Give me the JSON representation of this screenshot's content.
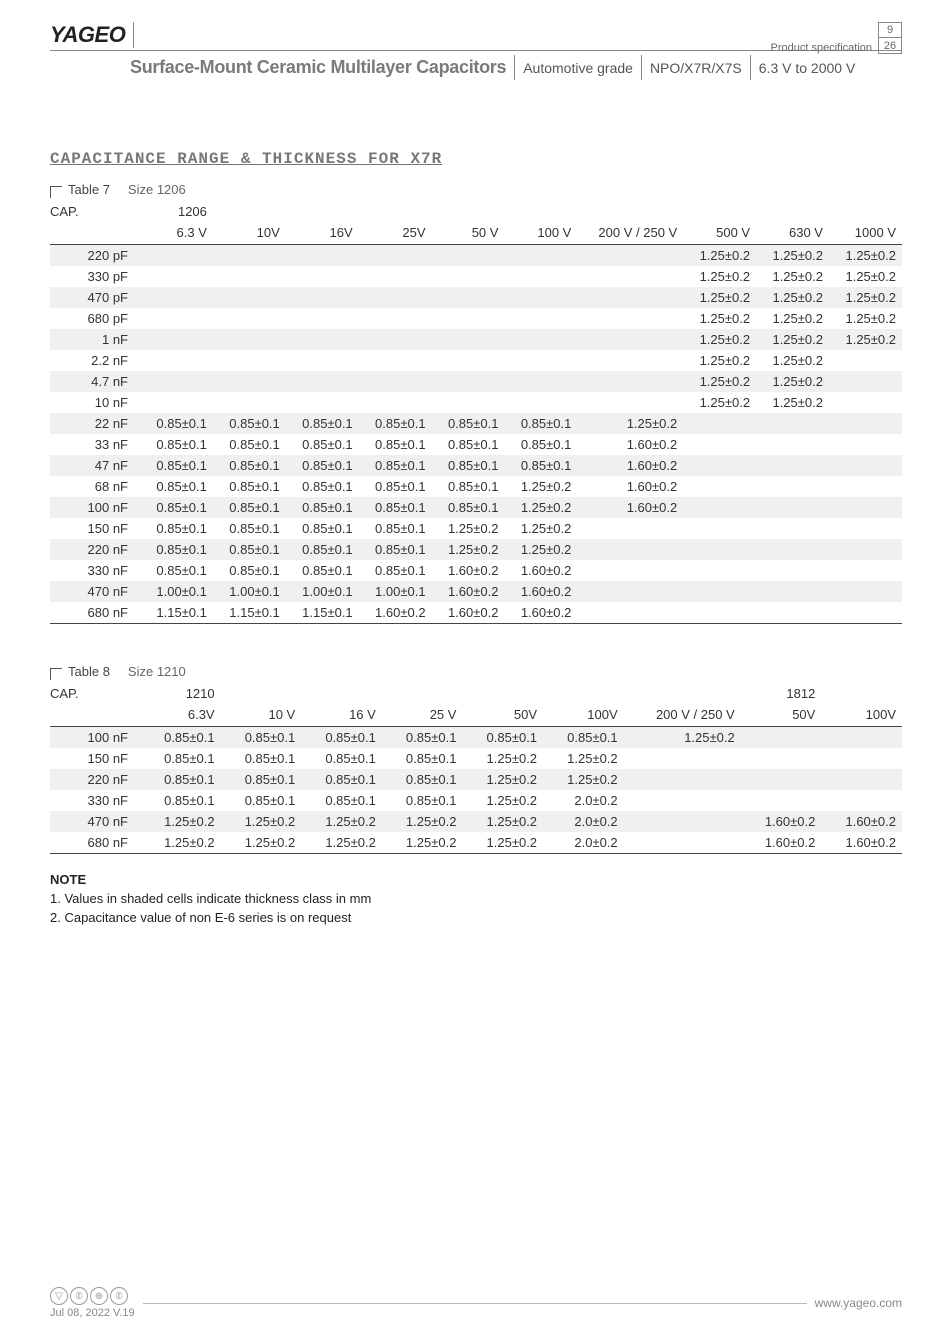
{
  "header": {
    "brand": "YAGEO",
    "product_spec_label": "Product specification",
    "page_current": "9",
    "page_total": "26",
    "title_main": "Surface-Mount Ceramic Multilayer Capacitors",
    "grade": "Automotive grade",
    "dielectric": "NPO/X7R/X7S",
    "voltage_range": "6.3 V to 2000 V"
  },
  "section_title": "CAPACITANCE RANGE & THICKNESS FOR X7R",
  "table7": {
    "caption": "Table 7",
    "size_label": "Size 1206",
    "cap_label": "CAP.",
    "size_header": "1206",
    "voltage_headers": [
      "6.3 V",
      "10V",
      "16V",
      "25V",
      "50 V",
      "100 V",
      "200 V / 250 V",
      "500 V",
      "630 V",
      "1000 V"
    ],
    "rows": [
      {
        "cap": "220 pF",
        "v": [
          "",
          "",
          "",
          "",
          "",
          "",
          "",
          "1.25±0.2",
          "1.25±0.2",
          "1.25±0.2"
        ]
      },
      {
        "cap": "330 pF",
        "v": [
          "",
          "",
          "",
          "",
          "",
          "",
          "",
          "1.25±0.2",
          "1.25±0.2",
          "1.25±0.2"
        ]
      },
      {
        "cap": "470 pF",
        "v": [
          "",
          "",
          "",
          "",
          "",
          "",
          "",
          "1.25±0.2",
          "1.25±0.2",
          "1.25±0.2"
        ]
      },
      {
        "cap": "680 pF",
        "v": [
          "",
          "",
          "",
          "",
          "",
          "",
          "",
          "1.25±0.2",
          "1.25±0.2",
          "1.25±0.2"
        ]
      },
      {
        "cap": "1 nF",
        "v": [
          "",
          "",
          "",
          "",
          "",
          "",
          "",
          "1.25±0.2",
          "1.25±0.2",
          "1.25±0.2"
        ]
      },
      {
        "cap": "2.2 nF",
        "v": [
          "",
          "",
          "",
          "",
          "",
          "",
          "",
          "1.25±0.2",
          "1.25±0.2",
          ""
        ]
      },
      {
        "cap": "4.7 nF",
        "v": [
          "",
          "",
          "",
          "",
          "",
          "",
          "",
          "1.25±0.2",
          "1.25±0.2",
          ""
        ]
      },
      {
        "cap": "10 nF",
        "v": [
          "",
          "",
          "",
          "",
          "",
          "",
          "",
          "1.25±0.2",
          "1.25±0.2",
          ""
        ]
      },
      {
        "cap": "22 nF",
        "v": [
          "0.85±0.1",
          "0.85±0.1",
          "0.85±0.1",
          "0.85±0.1",
          "0.85±0.1",
          "0.85±0.1",
          "1.25±0.2",
          "",
          "",
          ""
        ]
      },
      {
        "cap": "33 nF",
        "v": [
          "0.85±0.1",
          "0.85±0.1",
          "0.85±0.1",
          "0.85±0.1",
          "0.85±0.1",
          "0.85±0.1",
          "1.60±0.2",
          "",
          "",
          ""
        ]
      },
      {
        "cap": "47 nF",
        "v": [
          "0.85±0.1",
          "0.85±0.1",
          "0.85±0.1",
          "0.85±0.1",
          "0.85±0.1",
          "0.85±0.1",
          "1.60±0.2",
          "",
          "",
          ""
        ]
      },
      {
        "cap": "68 nF",
        "v": [
          "0.85±0.1",
          "0.85±0.1",
          "0.85±0.1",
          "0.85±0.1",
          "0.85±0.1",
          "1.25±0.2",
          "1.60±0.2",
          "",
          "",
          ""
        ]
      },
      {
        "cap": "100 nF",
        "v": [
          "0.85±0.1",
          "0.85±0.1",
          "0.85±0.1",
          "0.85±0.1",
          "0.85±0.1",
          "1.25±0.2",
          "1.60±0.2",
          "",
          "",
          ""
        ]
      },
      {
        "cap": "150 nF",
        "v": [
          "0.85±0.1",
          "0.85±0.1",
          "0.85±0.1",
          "0.85±0.1",
          "1.25±0.2",
          "1.25±0.2",
          "",
          "",
          "",
          ""
        ]
      },
      {
        "cap": "220 nF",
        "v": [
          "0.85±0.1",
          "0.85±0.1",
          "0.85±0.1",
          "0.85±0.1",
          "1.25±0.2",
          "1.25±0.2",
          "",
          "",
          "",
          ""
        ]
      },
      {
        "cap": "330 nF",
        "v": [
          "0.85±0.1",
          "0.85±0.1",
          "0.85±0.1",
          "0.85±0.1",
          "1.60±0.2",
          "1.60±0.2",
          "",
          "",
          "",
          ""
        ]
      },
      {
        "cap": "470 nF",
        "v": [
          "1.00±0.1",
          "1.00±0.1",
          "1.00±0.1",
          "1.00±0.1",
          "1.60±0.2",
          "1.60±0.2",
          "",
          "",
          "",
          ""
        ]
      },
      {
        "cap": "680 nF",
        "v": [
          "1.15±0.1",
          "1.15±0.1",
          "1.15±0.1",
          "1.60±0.2",
          "1.60±0.2",
          "1.60±0.2",
          "",
          "",
          "",
          ""
        ]
      }
    ],
    "shade_color": "#f0f0f0"
  },
  "table8": {
    "caption": "Table 8",
    "size_label": "Size 1210",
    "cap_label": "CAP.",
    "group1_header": "1210",
    "group2_header": "1812",
    "voltage_headers_g1": [
      "6.3V",
      "10 V",
      "16 V",
      "25 V",
      "50V",
      "100V",
      "200 V / 250 V"
    ],
    "voltage_headers_g2": [
      "50V",
      "100V"
    ],
    "rows": [
      {
        "cap": "100 nF",
        "g1": [
          "0.85±0.1",
          "0.85±0.1",
          "0.85±0.1",
          "0.85±0.1",
          "0.85±0.1",
          "0.85±0.1",
          "1.25±0.2"
        ],
        "g2": [
          "",
          ""
        ]
      },
      {
        "cap": "150 nF",
        "g1": [
          "0.85±0.1",
          "0.85±0.1",
          "0.85±0.1",
          "0.85±0.1",
          "1.25±0.2",
          "1.25±0.2",
          ""
        ],
        "g2": [
          "",
          ""
        ]
      },
      {
        "cap": "220 nF",
        "g1": [
          "0.85±0.1",
          "0.85±0.1",
          "0.85±0.1",
          "0.85±0.1",
          "1.25±0.2",
          "1.25±0.2",
          ""
        ],
        "g2": [
          "",
          ""
        ]
      },
      {
        "cap": "330 nF",
        "g1": [
          "0.85±0.1",
          "0.85±0.1",
          "0.85±0.1",
          "0.85±0.1",
          "1.25±0.2",
          "2.0±0.2",
          ""
        ],
        "g2": [
          "",
          ""
        ]
      },
      {
        "cap": "470 nF",
        "g1": [
          "1.25±0.2",
          "1.25±0.2",
          "1.25±0.2",
          "1.25±0.2",
          "1.25±0.2",
          "2.0±0.2",
          ""
        ],
        "g2": [
          "1.60±0.2",
          "1.60±0.2"
        ]
      },
      {
        "cap": "680 nF",
        "g1": [
          "1.25±0.2",
          "1.25±0.2",
          "1.25±0.2",
          "1.25±0.2",
          "1.25±0.2",
          "2.0±0.2",
          ""
        ],
        "g2": [
          "1.60±0.2",
          "1.60±0.2"
        ]
      }
    ]
  },
  "notes": {
    "head": "NOTE",
    "lines": [
      "1. Values in shaded cells indicate thickness class in mm",
      "2. Capacitance value of non E-6 series is on request"
    ]
  },
  "footer": {
    "date": "Jul 08, 2022 V.19",
    "url": "www.yageo.com"
  }
}
